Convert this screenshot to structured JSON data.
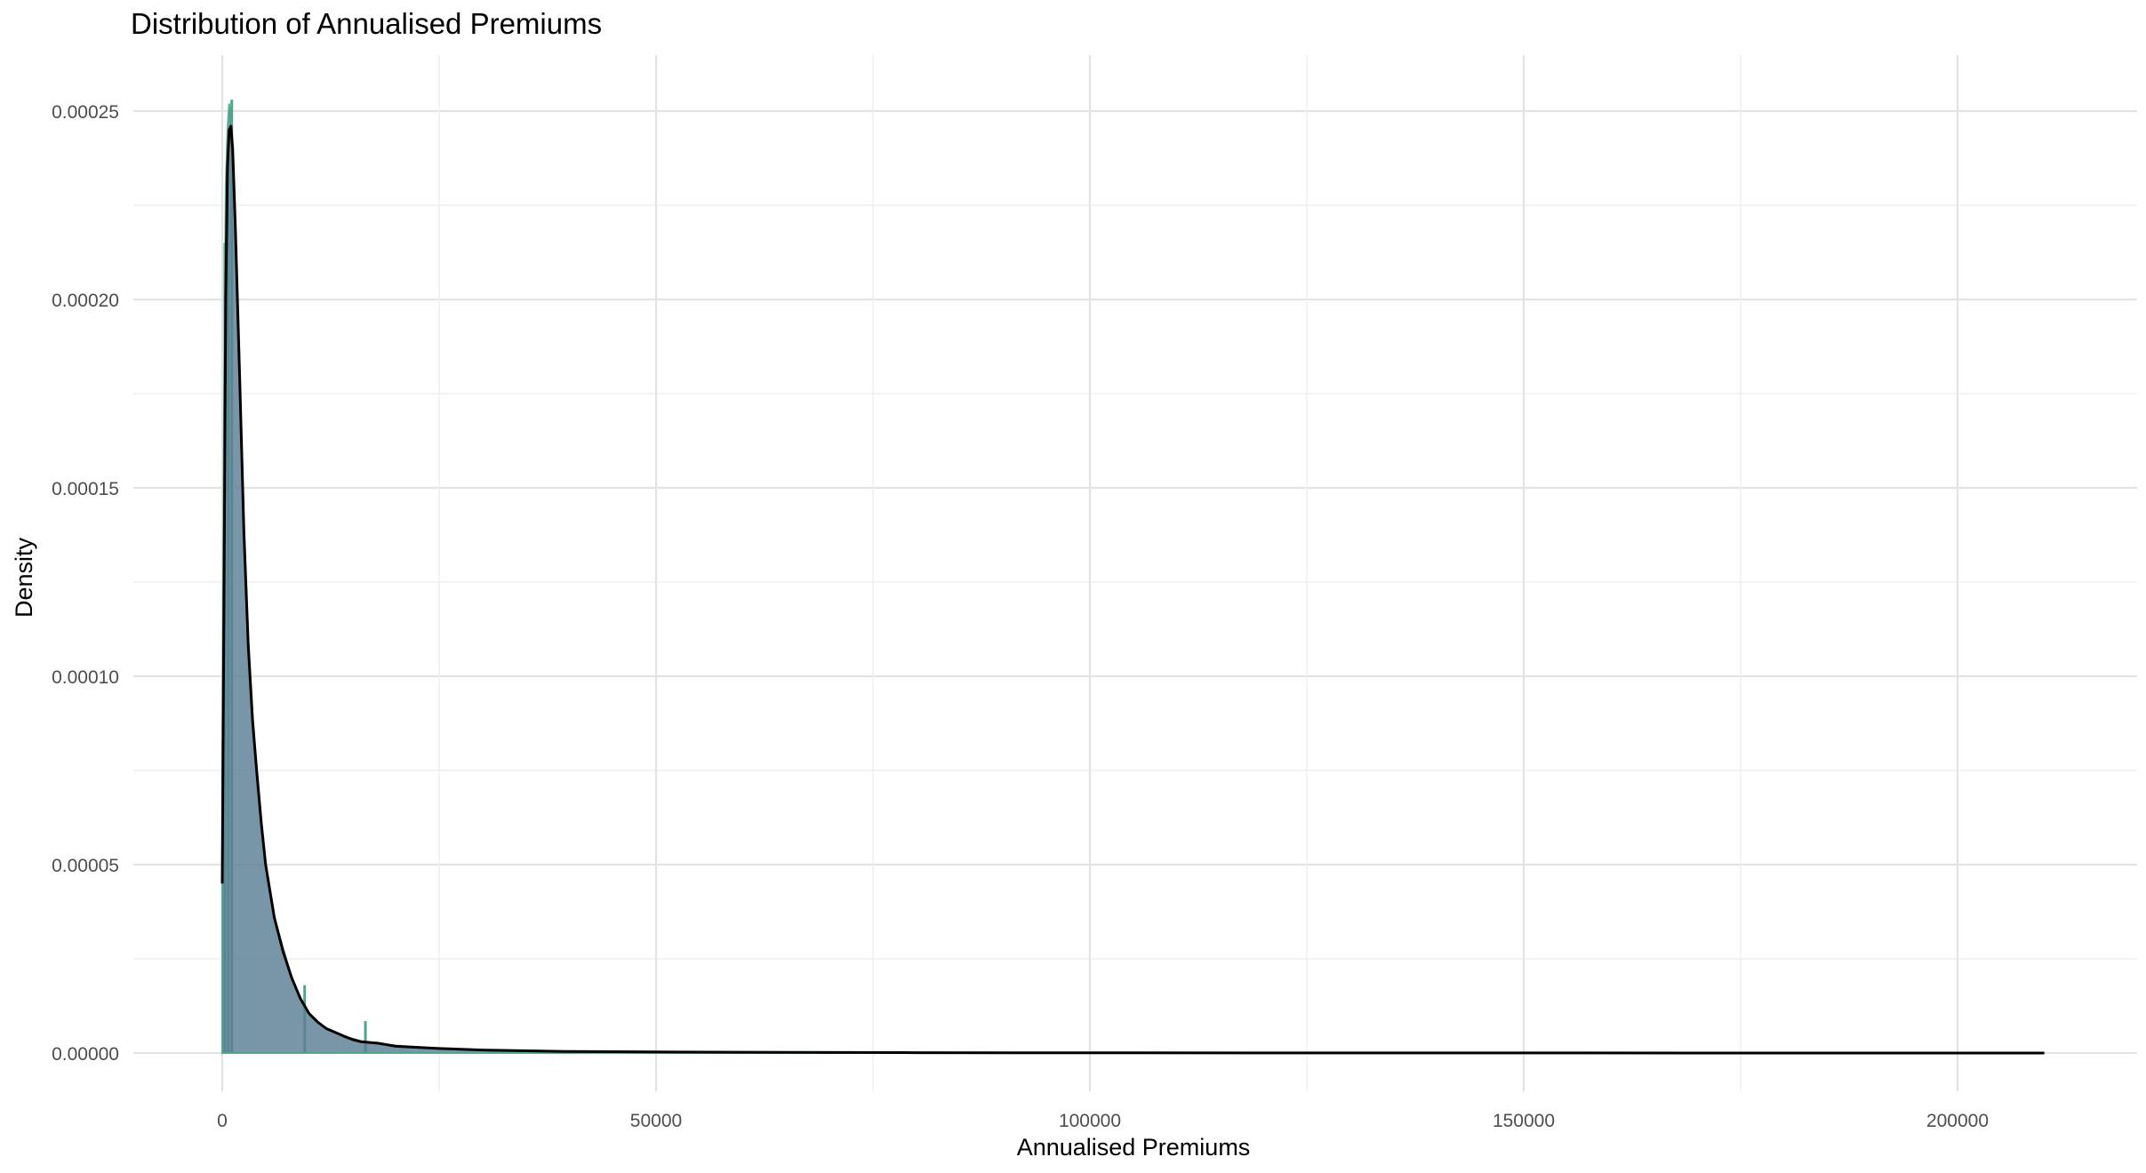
{
  "chart_data": {
    "type": "area",
    "title": "Distribution of Annualised Premiums",
    "xlabel": "Annualised Premiums",
    "ylabel": "Density",
    "xlim": [
      -10000,
      220000
    ],
    "ylim": [
      -6e-06,
      0.00026
    ],
    "x_ticks": [
      0,
      50000,
      100000,
      150000,
      200000
    ],
    "x_tick_labels": [
      "0",
      "50000",
      "100000",
      "150000",
      "200000"
    ],
    "y_ticks": [
      0,
      5e-05,
      0.0001,
      0.00015,
      0.0002,
      0.00025
    ],
    "y_tick_labels": [
      "0.00000",
      "0.00005",
      "0.00010",
      "0.00015",
      "0.00020",
      "0.00025"
    ],
    "grid": true,
    "legend": "none",
    "colors": {
      "area_fill": "#5b7f95",
      "histogram": "#4da58a",
      "density_line": "#000000"
    },
    "series": [
      {
        "type": "area",
        "x": [
          0,
          200,
          400,
          600,
          800,
          1000,
          1200,
          1500,
          2000,
          2500,
          3000,
          3500,
          4000,
          4500,
          5000,
          6000,
          7000,
          8000,
          9000,
          10000,
          11000,
          12000,
          14000,
          16000,
          18000,
          20000,
          25000,
          30000,
          40000,
          50000,
          60000,
          80000,
          100000,
          210000
        ],
        "y": [
          7.5e-05,
          0.00017,
          0.00023,
          0.000245,
          0.000252,
          0.000248,
          0.00024,
          0.00022,
          0.00018,
          0.00014,
          0.00011,
          9e-05,
          7.5e-05,
          6.2e-05,
          5e-05,
          3.6e-05,
          2.8e-05,
          2e-05,
          1.4e-05,
          1e-05,
          8e-06,
          6.5e-06,
          4.5e-06,
          3.2e-06,
          2.5e-06,
          2e-06,
          1.2e-06,
          8e-07,
          4e-07,
          3e-07,
          2e-07,
          1e-07,
          5e-08,
          0
        ]
      },
      {
        "type": "line",
        "x": [
          0,
          200,
          400,
          600,
          800,
          1000,
          1200,
          1500,
          2000,
          2500,
          3000,
          3500,
          4000,
          4500,
          5000,
          6000,
          7000,
          8000,
          9000,
          10000,
          11000,
          12000,
          13000,
          14000,
          15000,
          16000,
          17000,
          18000,
          19000,
          20000,
          25000,
          30000,
          40000,
          50000,
          60000,
          80000,
          100000,
          150000,
          210000
        ],
        "y": [
          4.5e-05,
          0.00012,
          0.0002,
          0.000235,
          0.000245,
          0.000246,
          0.00024,
          0.00022,
          0.00018,
          0.000138,
          0.000108,
          8.8e-05,
          7.4e-05,
          6.1e-05,
          5e-05,
          3.6e-05,
          2.7e-05,
          2e-05,
          1.45e-05,
          1.05e-05,
          8.2e-06,
          6.5e-06,
          5.5e-06,
          4.5e-06,
          3.6e-06,
          3e-06,
          2.8e-06,
          2.6e-06,
          2.2e-06,
          1.8e-06,
          1.2e-06,
          8e-07,
          4e-07,
          3e-07,
          2e-07,
          1e-07,
          5e-08,
          2e-08,
          0
        ]
      }
    ],
    "histogram_spikes": [
      {
        "x": 1100,
        "y": 0.000253
      },
      {
        "x": 700,
        "y": 0.00024
      },
      {
        "x": 300,
        "y": 0.000215
      },
      {
        "x": 16500,
        "y": 8.5e-06
      },
      {
        "x": 9500,
        "y": 1.8e-05
      }
    ]
  }
}
